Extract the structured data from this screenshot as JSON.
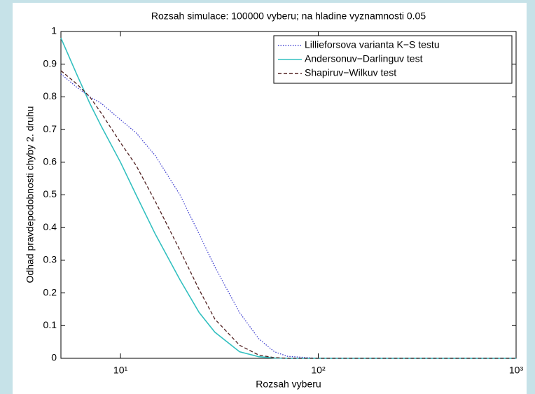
{
  "chart_data": {
    "type": "line",
    "title": "Rozsah simulace: 100000 vyberu; na hladine vyznamnosti 0.05",
    "x_label": "Rozsah vyberu",
    "y_label": "Odhad pravdepodobnosti chyby 2. druhu",
    "x": [
      5,
      6,
      7,
      8,
      10,
      12,
      15,
      20,
      25,
      30,
      40,
      50,
      60,
      70,
      100,
      1000
    ],
    "series": [
      {
        "name": "Lillieforsova varianta K−S testu",
        "color": "#4040d0",
        "dash": "dotted",
        "values": [
          0.87,
          0.83,
          0.8,
          0.78,
          0.73,
          0.69,
          0.62,
          0.5,
          0.38,
          0.28,
          0.14,
          0.06,
          0.02,
          0.006,
          0,
          0
        ]
      },
      {
        "name": "Andersonuv−Darlinguv test",
        "color": "#33c0c0",
        "dash": "solid",
        "values": [
          0.98,
          0.87,
          0.78,
          0.71,
          0.6,
          0.5,
          0.38,
          0.24,
          0.14,
          0.08,
          0.02,
          0.005,
          0.001,
          0,
          0,
          0
        ]
      },
      {
        "name": "Shapiruv−Wilkuv test",
        "color": "#502020",
        "dash": "dashed",
        "values": [
          0.88,
          0.84,
          0.8,
          0.75,
          0.66,
          0.59,
          0.48,
          0.33,
          0.21,
          0.12,
          0.04,
          0.01,
          0.002,
          0,
          0,
          0
        ]
      }
    ],
    "xscale": "log",
    "xlim": [
      5,
      1000
    ],
    "xticks": [
      {
        "value": 10,
        "label": "10¹"
      },
      {
        "value": 100,
        "label": "10²"
      },
      {
        "value": 1000,
        "label": "10³"
      }
    ],
    "ylim": [
      0,
      1
    ],
    "yticks": [
      0,
      0.1,
      0.2,
      0.3,
      0.4,
      0.5,
      0.6,
      0.7,
      0.8,
      0.9,
      1
    ],
    "legend": "upper right"
  }
}
